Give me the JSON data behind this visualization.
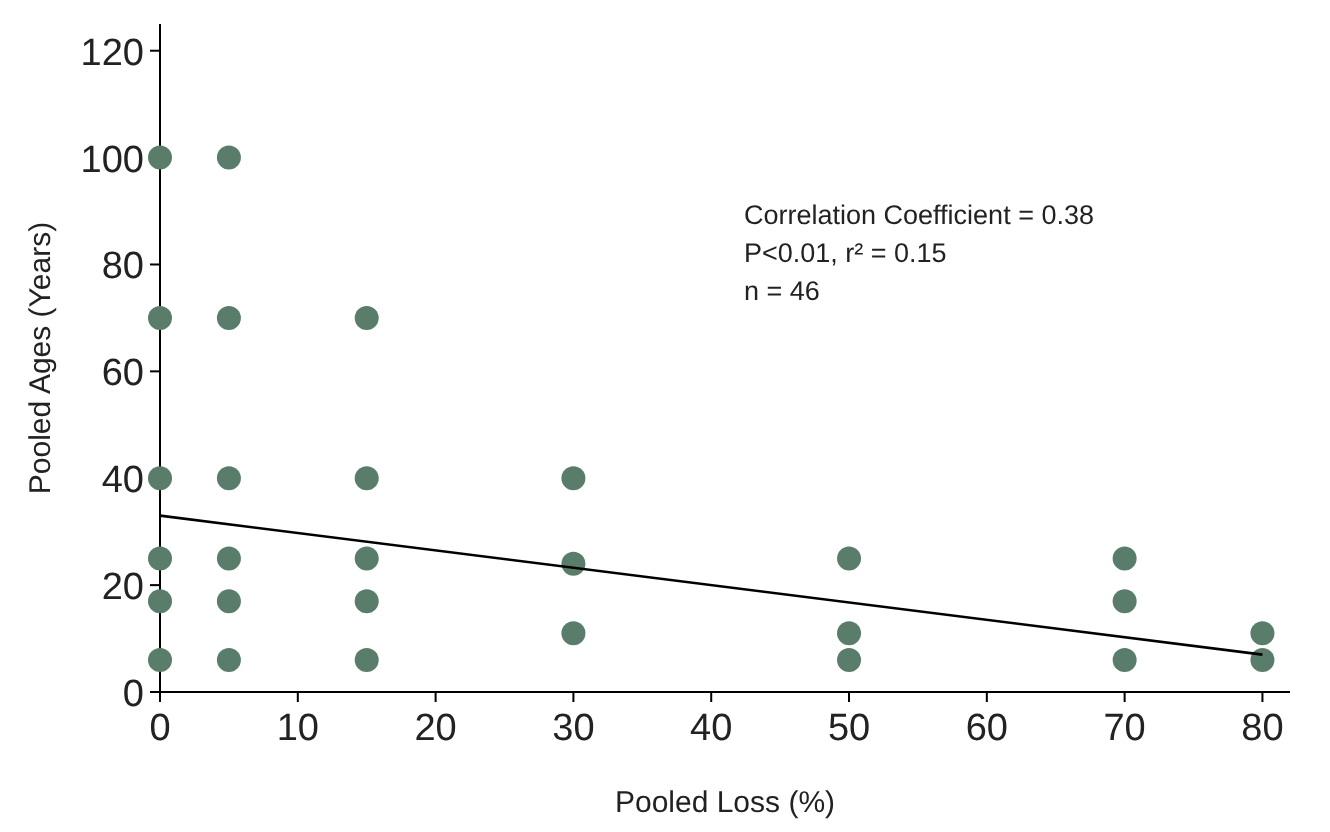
{
  "chart_data": {
    "type": "scatter",
    "xlabel": "Pooled Loss (%)",
    "ylabel": "Pooled Ages (Years)",
    "annotations": [
      "Correlation Coefficient = 0.38",
      "P<0.01, r² = 0.15",
      "n = 46"
    ],
    "xlim": [
      0,
      82
    ],
    "xticks": [
      0,
      10,
      20,
      30,
      40,
      50,
      60,
      70,
      80
    ],
    "ylim": [
      0,
      125
    ],
    "yticks": [
      0,
      20,
      40,
      60,
      80,
      100,
      120
    ],
    "grid": false,
    "series": [
      {
        "color": "#5a7d6b",
        "marker": "circle",
        "x": [
          0,
          0,
          0,
          0,
          0,
          0,
          5,
          5,
          5,
          5,
          5,
          5,
          15,
          15,
          15,
          15,
          15,
          30,
          30,
          30,
          50,
          50,
          50,
          70,
          70,
          70,
          80,
          80
        ],
        "values": [
          100,
          70,
          40,
          25,
          17,
          6,
          100,
          70,
          40,
          25,
          17,
          6,
          70,
          40,
          25,
          17,
          6,
          40,
          24,
          11,
          25,
          11,
          6,
          25,
          17,
          6,
          11,
          6
        ]
      },
      {
        "type": "line",
        "color": "#000000",
        "x": [
          0,
          80
        ],
        "values": [
          33,
          7
        ],
        "marker": "none"
      }
    ]
  }
}
